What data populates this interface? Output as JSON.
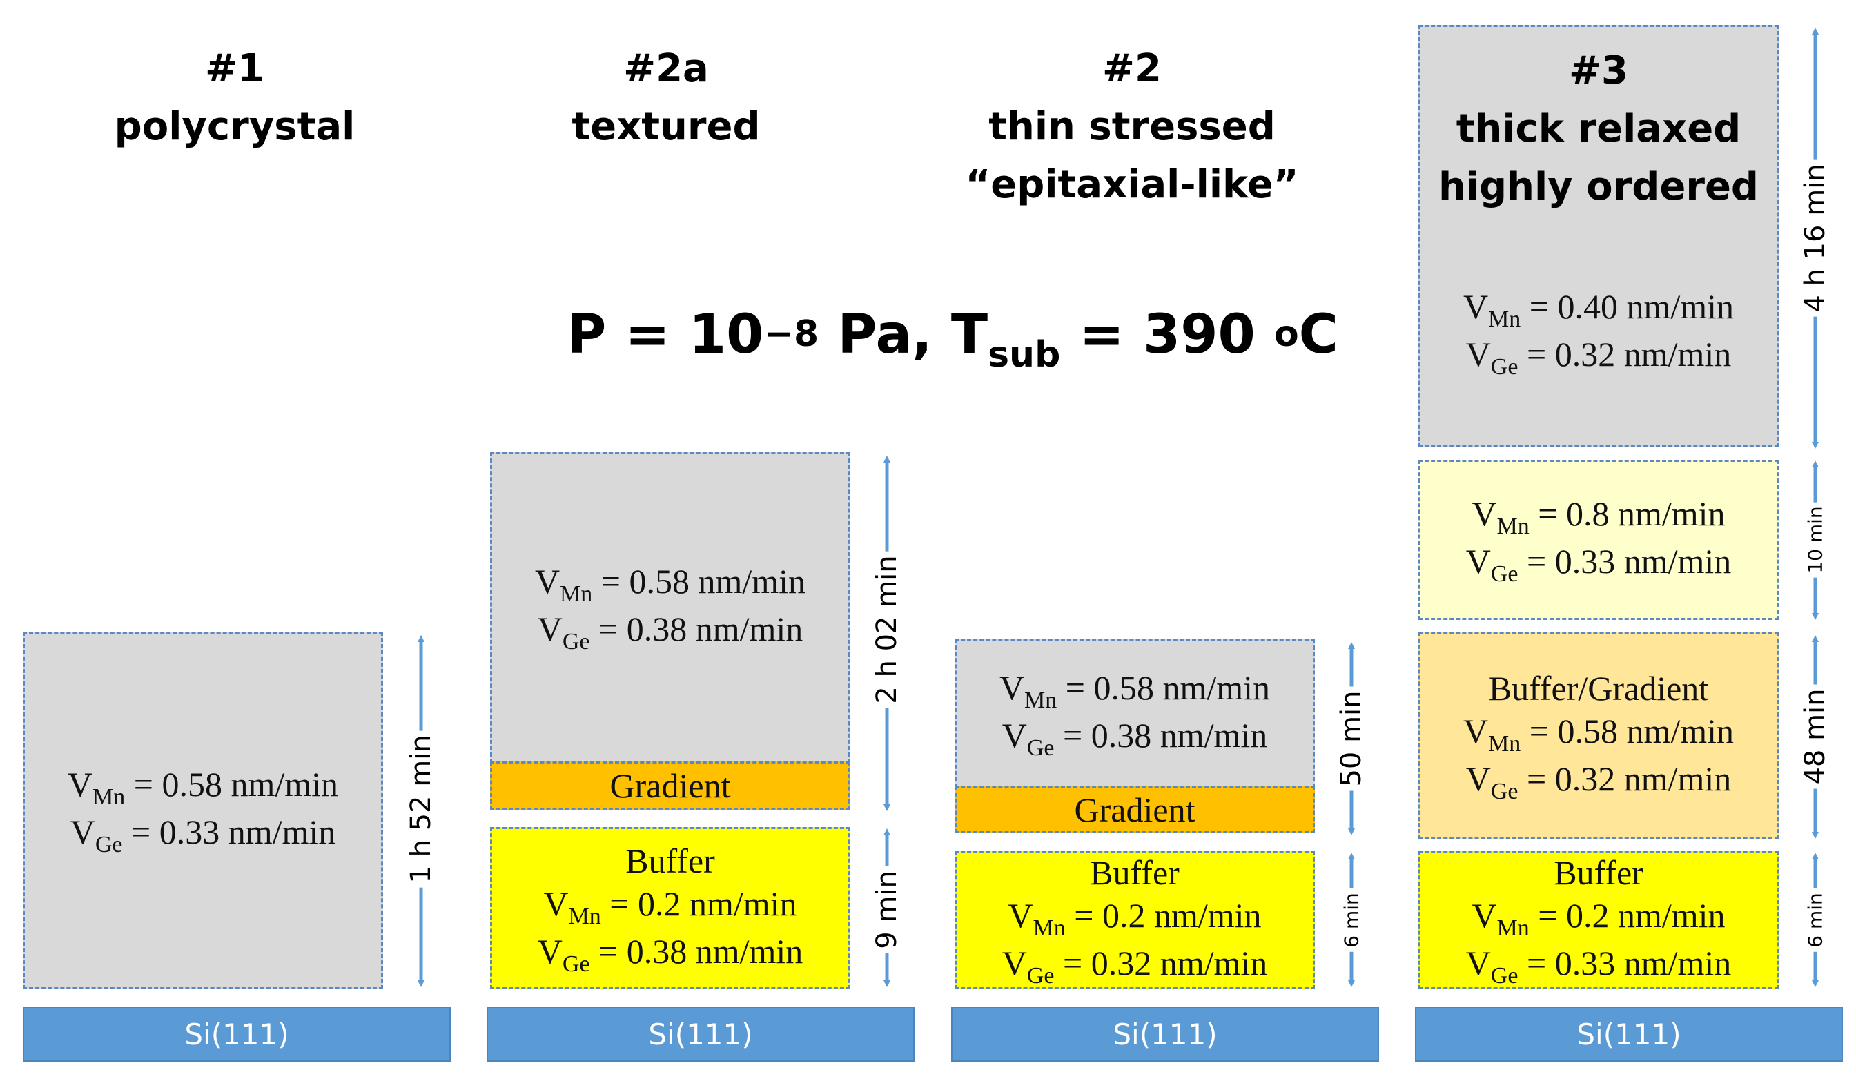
{
  "condition": {
    "p_label": "P = 10",
    "p_exp": "−8",
    "mid": " Pa, T",
    "t_sub": "sub",
    "t_value": " = 390 ",
    "t_deg": "o",
    "t_unit": "C"
  },
  "samples": [
    {
      "number": "#1",
      "desc": [
        "polycrystal"
      ],
      "substrate": "Si(111)"
    },
    {
      "number": "#2a",
      "desc": [
        "textured"
      ],
      "substrate": "Si(111)"
    },
    {
      "number": "#2",
      "desc": [
        "thin stressed",
        "“epitaxial-like”"
      ],
      "substrate": "Si(111)"
    },
    {
      "number": "#3",
      "desc": [
        "thick relaxed",
        "highly ordered"
      ],
      "substrate": "Si(111)"
    }
  ],
  "layers": {
    "s1_main": {
      "v_mn_label": "V",
      "mn": "Mn",
      "v_mn": " = 0.58 nm/min",
      "v_ge_label": "V",
      "ge": "Ge",
      "v_ge": " = 0.33 nm/min"
    },
    "s2a_main": {
      "v_mn_label": "V",
      "mn": "Mn",
      "v_mn": " = 0.58 nm/min",
      "v_ge_label": "V",
      "ge": "Ge",
      "v_ge": " = 0.38 nm/min"
    },
    "s2a_gradient": {
      "label": "Gradient"
    },
    "s2a_buffer": {
      "label": "Buffer",
      "v_mn_label": "V",
      "mn": "Mn",
      "v_mn": " = 0.2 nm/min",
      "v_ge_label": "V",
      "ge": "Ge",
      "v_ge": " = 0.38 nm/min"
    },
    "s2_main": {
      "v_mn_label": "V",
      "mn": "Mn",
      "v_mn": " = 0.58 nm/min",
      "v_ge_label": "V",
      "ge": "Ge",
      "v_ge": " = 0.38 nm/min"
    },
    "s2_gradient": {
      "label": "Gradient"
    },
    "s2_buffer": {
      "label": "Buffer",
      "v_mn_label": "V",
      "mn": "Mn",
      "v_mn": " = 0.2 nm/min",
      "v_ge_label": "V",
      "ge": "Ge",
      "v_ge": " = 0.32 nm/min"
    },
    "s3_top": {
      "v_mn_label": "V",
      "mn": "Mn",
      "v_mn": " = 0.40 nm/min",
      "v_ge_label": "V",
      "ge": "Ge",
      "v_ge": " = 0.32 nm/min"
    },
    "s3_upper": {
      "v_mn_label": "V",
      "mn": "Mn",
      "v_mn": " = 0.8 nm/min",
      "v_ge_label": "V",
      "ge": "Ge",
      "v_ge": " = 0.33 nm/min"
    },
    "s3_gradient": {
      "label": "Buffer/Gradient",
      "v_mn_label": "V",
      "mn": "Mn",
      "v_mn": " = 0.58 nm/min",
      "v_ge_label": "V",
      "ge": "Ge",
      "v_ge": " = 0.32 nm/min"
    },
    "s3_buffer": {
      "label": "Buffer",
      "v_mn_label": "V",
      "mn": "Mn",
      "v_mn": " = 0.2 nm/min",
      "v_ge_label": "V",
      "ge": "Ge",
      "v_ge": " = 0.33 nm/min"
    }
  },
  "durations": {
    "s1_main": "1 h 52 min",
    "s2a_main": "2 h 02 min",
    "s2a_buffer": "9 min",
    "s2_main": "50 min",
    "s2_buffer": "6 min",
    "s3_top": "4 h 16 min",
    "s3_upper": "10 min",
    "s3_gradient": "48 min",
    "s3_buffer": "6 min"
  },
  "colors": {
    "arrow": "#5b9bd5",
    "substrate": "#5b9bd5",
    "grey": "#d9d9d9",
    "yellow": "#ffff00",
    "orange": "#ffc000"
  }
}
